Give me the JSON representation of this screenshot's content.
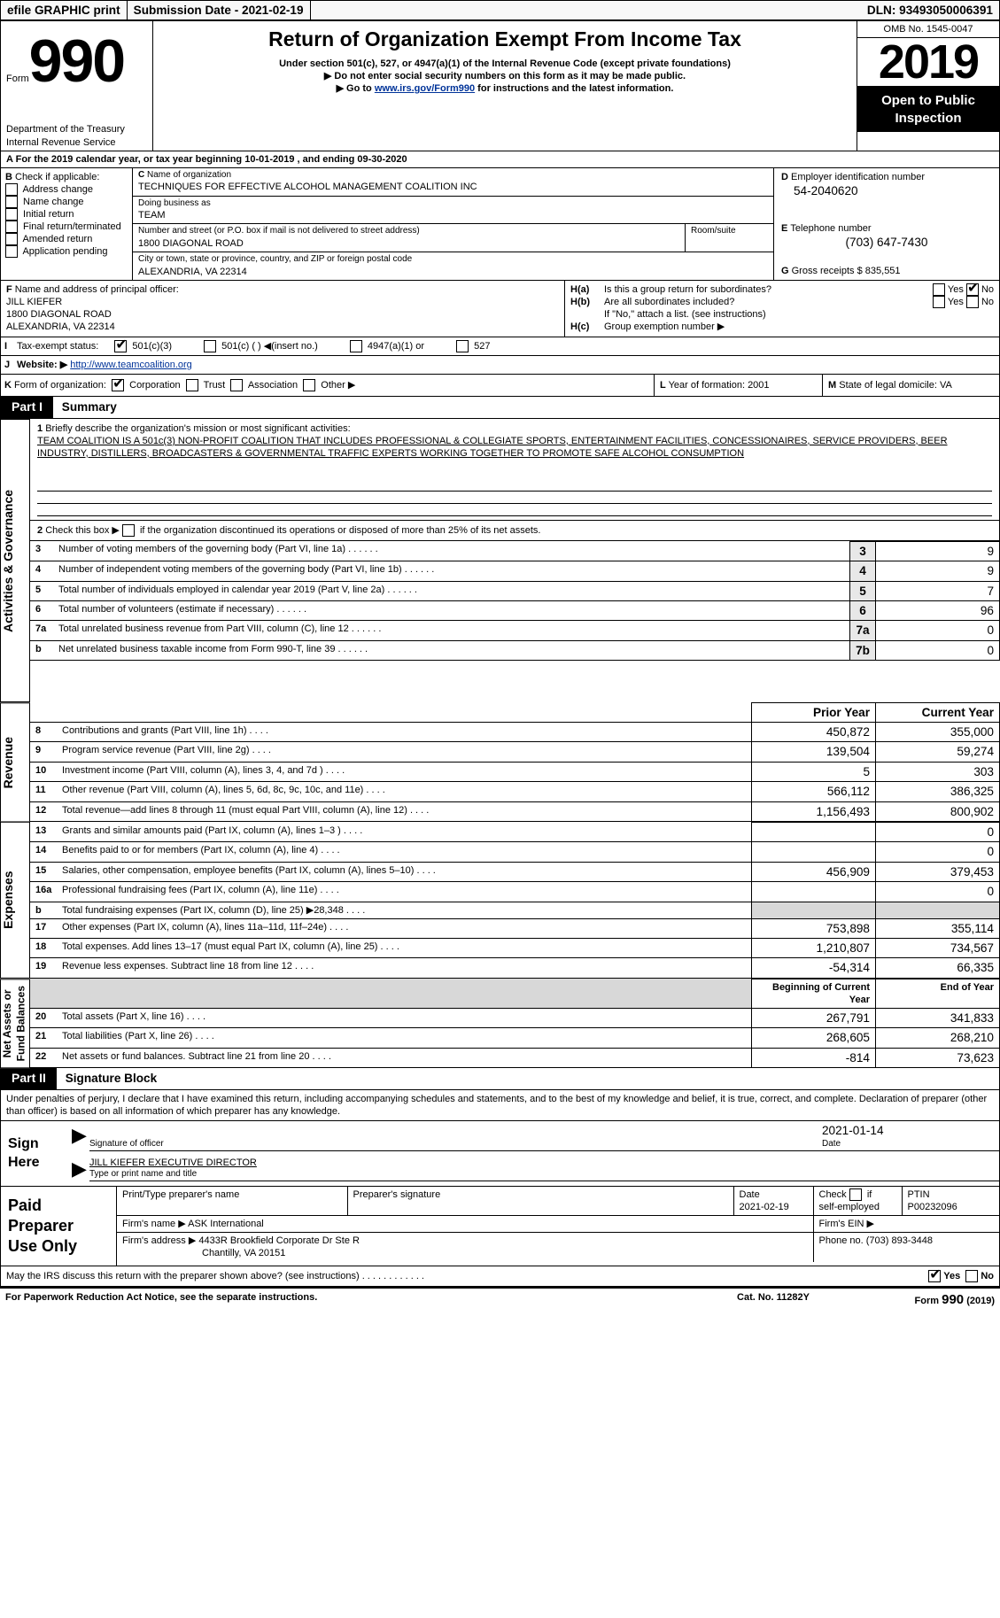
{
  "header_bar": {
    "efile": "efile GRAPHIC print",
    "submission": "Submission Date - 2021-02-19",
    "dln": "DLN: 93493050006391"
  },
  "header": {
    "form": "Form",
    "num": "990",
    "title": "Return of Organization Exempt From Income Tax",
    "sub1": "Under section 501(c), 527, or 4947(a)(1) of the Internal Revenue Code (except private foundations)",
    "sub2": "Do not enter social security numbers on this form as it may be made public.",
    "sub3_pre": "Go to ",
    "sub3_link": "www.irs.gov/Form990",
    "sub3_post": " for instructions and the latest information.",
    "dept": "Department of the Treasury\nInternal Revenue Service",
    "omb": "OMB No. 1545-0047",
    "year": "2019",
    "openpub": "Open to Public\nInspection"
  },
  "A": {
    "text": "For the 2019 calendar year, or tax year beginning ",
    "b1": "10-01-2019",
    "mid": " , and ending ",
    "b2": "09-30-2020"
  },
  "B": {
    "label": "Check if applicable:",
    "items": [
      "Address change",
      "Name change",
      "Initial return",
      "Final return/terminated",
      "Amended return",
      "Application pending"
    ]
  },
  "C": {
    "label": "Name of organization",
    "name": "TECHNIQUES FOR EFFECTIVE ALCOHOL MANAGEMENT COALITION INC",
    "dba_label": "Doing business as",
    "dba": "TEAM",
    "addr_label": "Number and street (or P.O. box if mail is not delivered to street address)",
    "room": "Room/suite",
    "addr": "1800 DIAGONAL ROAD",
    "city_label": "City or town, state or province, country, and ZIP or foreign postal code",
    "city": "ALEXANDRIA, VA  22314"
  },
  "D": {
    "label": "Employer identification number",
    "val": "54-2040620"
  },
  "E": {
    "label": "Telephone number",
    "val": "(703) 647-7430"
  },
  "G": {
    "label": "Gross receipts $",
    "val": "835,551"
  },
  "F": {
    "label": "Name and address of principal officer:",
    "name": "JILL KIEFER",
    "l2": "1800 DIAGONAL ROAD",
    "l3": "ALEXANDRIA, VA  22314"
  },
  "H": {
    "a": "Is this a group return for subordinates?",
    "b": "Are all subordinates included?",
    "note": "If \"No,\" attach a list. (see instructions)",
    "c": "Group exemption number ▶",
    "yes": "Yes",
    "no": "No"
  },
  "I": {
    "label": "Tax-exempt status:",
    "c1": "501(c)(3)",
    "c2": "501(c) (  ) ◀(insert no.)",
    "c3": "4947(a)(1) or",
    "c4": "527"
  },
  "J": {
    "label": "Website: ▶",
    "val": "http://www.teamcoalition.org"
  },
  "K": {
    "label": "Form of organization:",
    "c1": "Corporation",
    "c2": "Trust",
    "c3": "Association",
    "c4": "Other ▶"
  },
  "L": {
    "label": "Year of formation:",
    "val": "2001"
  },
  "M": {
    "label": "State of legal domicile:",
    "val": "VA"
  },
  "part1": {
    "label": "Part I",
    "title": "Summary"
  },
  "gov": {
    "side": "Activities & Governance",
    "l1": "Briefly describe the organization's mission or most significant activities:",
    "mission": "TEAM COALITION IS A 501c(3) NON-PROFIT COALITION THAT INCLUDES PROFESSIONAL & COLLEGIATE SPORTS, ENTERTAINMENT FACILITIES, CONCESSIONAIRES, SERVICE PROVIDERS, BEER INDUSTRY, DISTILLERS, BROADCASTERS & GOVERNMENTAL TRAFFIC EXPERTS WORKING TOGETHER TO PROMOTE SAFE ALCOHOL CONSUMPTION",
    "l2": "Check this box ▶",
    "l2b": "if the organization discontinued its operations or disposed of more than 25% of its net assets.",
    "rows": [
      {
        "n": "3",
        "t": "Number of voting members of the governing body (Part VI, line 1a)",
        "rn": "3",
        "v": "9"
      },
      {
        "n": "4",
        "t": "Number of independent voting members of the governing body (Part VI, line 1b)",
        "rn": "4",
        "v": "9"
      },
      {
        "n": "5",
        "t": "Total number of individuals employed in calendar year 2019 (Part V, line 2a)",
        "rn": "5",
        "v": "7"
      },
      {
        "n": "6",
        "t": "Total number of volunteers (estimate if necessary)",
        "rn": "6",
        "v": "96"
      },
      {
        "n": "7a",
        "t": "Total unrelated business revenue from Part VIII, column (C), line 12",
        "rn": "7a",
        "v": "0"
      },
      {
        "n": "b",
        "t": "Net unrelated business taxable income from Form 990-T, line 39",
        "rn": "7b",
        "v": "0"
      }
    ]
  },
  "rev": {
    "side": "Revenue",
    "hdr": {
      "py": "Prior Year",
      "cy": "Current Year"
    },
    "rows": [
      {
        "n": "8",
        "t": "Contributions and grants (Part VIII, line 1h)",
        "py": "450,872",
        "cy": "355,000"
      },
      {
        "n": "9",
        "t": "Program service revenue (Part VIII, line 2g)",
        "py": "139,504",
        "cy": "59,274"
      },
      {
        "n": "10",
        "t": "Investment income (Part VIII, column (A), lines 3, 4, and 7d )",
        "py": "5",
        "cy": "303"
      },
      {
        "n": "11",
        "t": "Other revenue (Part VIII, column (A), lines 5, 6d, 8c, 9c, 10c, and 11e)",
        "py": "566,112",
        "cy": "386,325"
      },
      {
        "n": "12",
        "t": "Total revenue—add lines 8 through 11 (must equal Part VIII, column (A), line 12)",
        "py": "1,156,493",
        "cy": "800,902"
      }
    ]
  },
  "exp": {
    "side": "Expenses",
    "rows": [
      {
        "n": "13",
        "t": "Grants and similar amounts paid (Part IX, column (A), lines 1–3 )",
        "py": "",
        "cy": "0"
      },
      {
        "n": "14",
        "t": "Benefits paid to or for members (Part IX, column (A), line 4)",
        "py": "",
        "cy": "0"
      },
      {
        "n": "15",
        "t": "Salaries, other compensation, employee benefits (Part IX, column (A), lines 5–10)",
        "py": "456,909",
        "cy": "379,453"
      },
      {
        "n": "16a",
        "t": "Professional fundraising fees (Part IX, column (A), line 11e)",
        "py": "",
        "cy": "0"
      },
      {
        "n": "b",
        "t": "Total fundraising expenses (Part IX, column (D), line 25) ▶28,348",
        "py": "shaded",
        "cy": "shaded"
      },
      {
        "n": "17",
        "t": "Other expenses (Part IX, column (A), lines 11a–11d, 11f–24e)",
        "py": "753,898",
        "cy": "355,114"
      },
      {
        "n": "18",
        "t": "Total expenses. Add lines 13–17 (must equal Part IX, column (A), line 25)",
        "py": "1,210,807",
        "cy": "734,567"
      },
      {
        "n": "19",
        "t": "Revenue less expenses. Subtract line 18 from line 12",
        "py": "-54,314",
        "cy": "66,335"
      }
    ]
  },
  "na": {
    "side": "Net Assets or\nFund Balances",
    "hdr": {
      "b": "Beginning of Current Year",
      "e": "End of Year"
    },
    "rows": [
      {
        "n": "20",
        "t": "Total assets (Part X, line 16)",
        "py": "267,791",
        "cy": "341,833"
      },
      {
        "n": "21",
        "t": "Total liabilities (Part X, line 26)",
        "py": "268,605",
        "cy": "268,210"
      },
      {
        "n": "22",
        "t": "Net assets or fund balances. Subtract line 21 from line 20",
        "py": "-814",
        "cy": "73,623"
      }
    ]
  },
  "part2": {
    "label": "Part II",
    "title": "Signature Block",
    "perjury": "Under penalties of perjury, I declare that I have examined this return, including accompanying schedules and statements, and to the best of my knowledge and belief, it is true, correct, and complete. Declaration of preparer (other than officer) is based on all information of which preparer has any knowledge."
  },
  "sign": {
    "here": "Sign\nHere",
    "sig": "Signature of officer",
    "date": "Date",
    "dateval": "2021-01-14",
    "name": "JILL KIEFER  EXECUTIVE DIRECTOR",
    "typed": "Type or print name and title"
  },
  "prep": {
    "here": "Paid\nPreparer\nUse Only",
    "h": {
      "name": "Print/Type preparer's name",
      "sig": "Preparer's signature",
      "date": "Date",
      "date_v": "2021-02-19",
      "check": "Check",
      "if": "if",
      "se": "self-employed",
      "ptin": "PTIN",
      "ptin_v": "P00232096"
    },
    "firm": "Firm's name ▶",
    "firm_v": "ASK International",
    "ein": "Firm's EIN ▶",
    "addr": "Firm's address ▶",
    "addr_v": "4433R Brookfield Corporate Dr Ste R",
    "addr_v2": "Chantilly, VA  20151",
    "phone": "Phone no.",
    "phone_v": "(703) 893-3448"
  },
  "foot": {
    "q": "May the IRS discuss this return with the preparer shown above? (see instructions)",
    "yes": "Yes",
    "no": "No",
    "pra": "For Paperwork Reduction Act Notice, see the separate instructions.",
    "cat": "Cat. No. 11282Y",
    "form": "Form",
    "ff": "990",
    "yr": "(2019)"
  }
}
